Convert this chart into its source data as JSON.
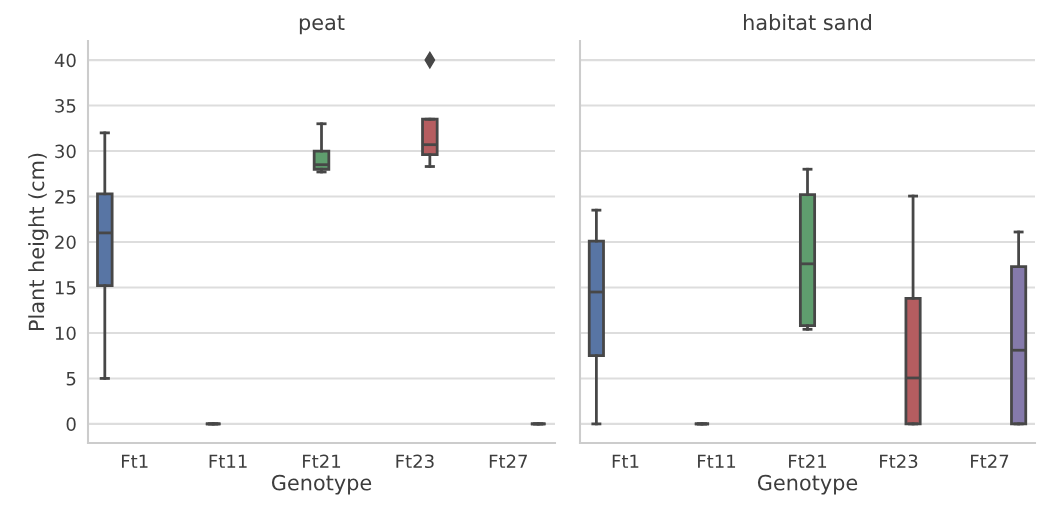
{
  "chart_data": [
    {
      "type": "box",
      "title": "peat",
      "xlabel": "Genotype",
      "ylabel": "Plant height (cm)",
      "categories": [
        "Ft1",
        "Ft11",
        "Ft21",
        "Ft23",
        "Ft27"
      ],
      "colors": [
        "#5875a4",
        "#474747",
        "#5f9e6e",
        "#b55d60",
        "#474747"
      ],
      "boxes": [
        {
          "low": 5,
          "q1": 15.2,
          "median": 21,
          "q3": 25.3,
          "high": 32
        },
        {
          "low": 0,
          "q1": 0,
          "median": 0,
          "q3": 0,
          "high": 0
        },
        {
          "low": 27.7,
          "q1": 28,
          "median": 28.5,
          "q3": 30,
          "high": 33
        },
        {
          "low": 28.3,
          "q1": 29.6,
          "median": 30.7,
          "q3": 33.5,
          "high": 33.5,
          "outliers": [
            40
          ]
        },
        {
          "low": 0,
          "q1": 0,
          "median": 0,
          "q3": 0,
          "high": 0
        }
      ],
      "ylim": [
        -2.1,
        42.1
      ],
      "yticks": [
        0,
        5,
        10,
        15,
        20,
        25,
        30,
        35,
        40
      ],
      "grid": "y",
      "marker": "diamond"
    },
    {
      "type": "box",
      "title": "habitat sand",
      "xlabel": "Genotype",
      "categories": [
        "Ft1",
        "Ft11",
        "Ft21",
        "Ft23",
        "Ft27"
      ],
      "colors": [
        "#5875a4",
        "#474747",
        "#5f9e6e",
        "#b55d60",
        "#857aab"
      ],
      "boxes": [
        {
          "low": 0,
          "q1": 7.5,
          "median": 14.5,
          "q3": 20.1,
          "high": 23.5
        },
        {
          "low": 0,
          "q1": 0,
          "median": 0,
          "q3": 0,
          "high": 0
        },
        {
          "low": 10.4,
          "q1": 10.8,
          "median": 17.6,
          "q3": 25.2,
          "high": 28
        },
        {
          "low": 0,
          "q1": 0,
          "median": 5.05,
          "q3": 13.8,
          "high": 25.05
        },
        {
          "low": 0,
          "q1": 0,
          "median": 8.1,
          "q3": 17.3,
          "high": 21.1
        }
      ],
      "ylim": [
        -2.1,
        42.1
      ],
      "yticks": [
        0,
        5,
        10,
        15,
        20,
        25,
        30,
        35,
        40
      ],
      "grid": "y",
      "marker": "diamond",
      "tick_labels": "x"
    }
  ]
}
